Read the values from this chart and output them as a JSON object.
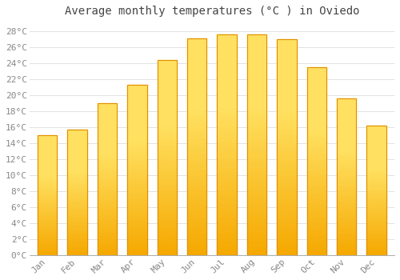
{
  "title": "Average monthly temperatures (°C ) in Oviedo",
  "months": [
    "Jan",
    "Feb",
    "Mar",
    "Apr",
    "May",
    "Jun",
    "Jul",
    "Aug",
    "Sep",
    "Oct",
    "Nov",
    "Dec"
  ],
  "values": [
    15.0,
    15.7,
    19.0,
    21.3,
    24.4,
    27.1,
    27.6,
    27.6,
    27.0,
    23.5,
    19.6,
    16.2
  ],
  "bar_color_bottom": "#F5A800",
  "bar_color_top": "#FFE060",
  "bar_color_mid": "#FFC830",
  "bar_edge_color": "#E09000",
  "background_color": "#FFFFFF",
  "plot_bg_color": "#FFFFFF",
  "grid_color": "#DDDDDD",
  "tick_color": "#888888",
  "title_color": "#444444",
  "ylim": [
    0,
    29
  ],
  "yticks": [
    0,
    2,
    4,
    6,
    8,
    10,
    12,
    14,
    16,
    18,
    20,
    22,
    24,
    26,
    28
  ],
  "title_fontsize": 10,
  "tick_fontsize": 8,
  "font_family": "monospace"
}
